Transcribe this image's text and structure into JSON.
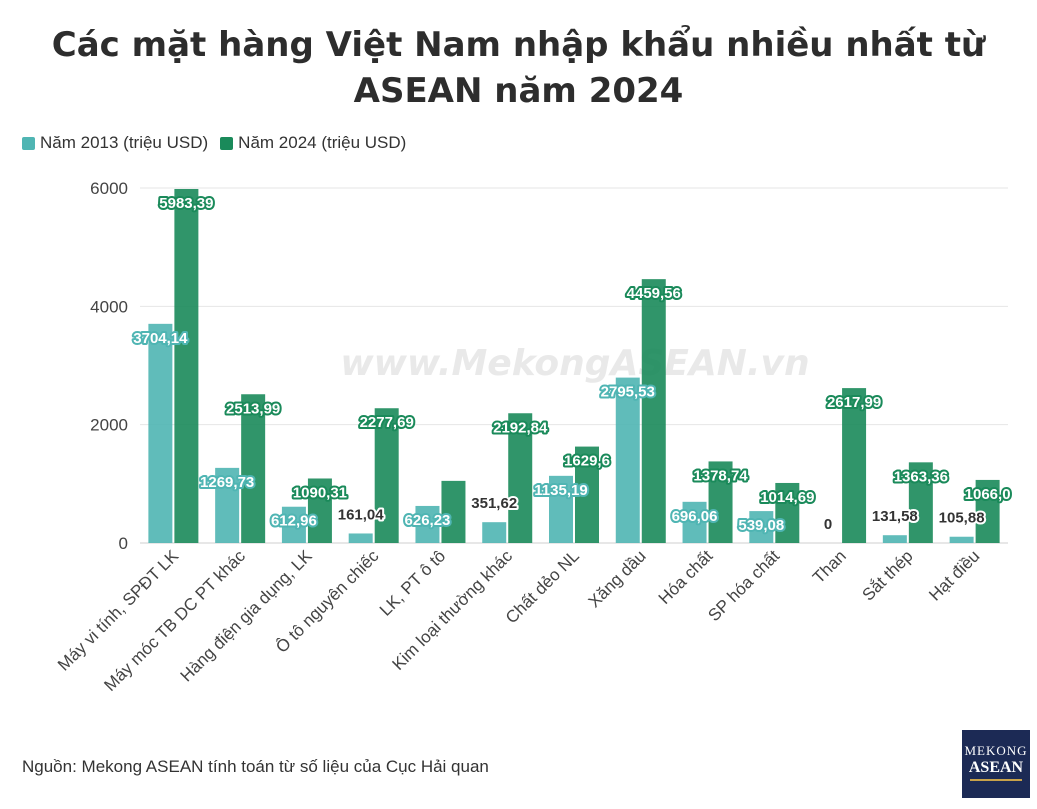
{
  "title_line1": "Các mặt hàng Việt Nam nhập khẩu nhiều nhất từ",
  "title_line2": "ASEAN năm 2024",
  "legend": [
    {
      "label": "Năm 2013 (triệu USD)",
      "color": "#4fb5b3"
    },
    {
      "label": "Năm 2024 (triệu USD)",
      "color": "#1a8a5a"
    }
  ],
  "watermark": "www.MekongASEAN.vn",
  "source": "Nguồn: Mekong ASEAN tính toán từ số liệu của Cục Hải quan",
  "logo": {
    "line1": "MEKONG",
    "line2": "ASEAN"
  },
  "chart_data": {
    "type": "bar",
    "categories": [
      "Máy vi tính, SPĐT LK",
      "Máy móc TB DC PT khác",
      "Hàng điện gia dụng, LK",
      "Ô tô nguyên chiếc",
      "LK, PT ô tô",
      "Kim loại thường khác",
      "Chất dẻo NL",
      "Xăng dầu",
      "Hóa chất",
      "SP hóa chất",
      "Than",
      "Sắt thép",
      "Hạt điều"
    ],
    "series": [
      {
        "name": "Năm 2013 (triệu USD)",
        "color": "#4fb5b3",
        "values": [
          3704.14,
          1269.73,
          612.96,
          161.04,
          626.23,
          351.62,
          1135.19,
          2795.53,
          696.06,
          539.08,
          0,
          131.58,
          105.88
        ],
        "labels": [
          "3704,14",
          "1269,73",
          "612,96",
          "161,04",
          "626,23",
          "351,62",
          "1135,19",
          "2795,53",
          "696,06",
          "539,08",
          "0",
          "131,58",
          "105,88"
        ]
      },
      {
        "name": "Năm 2024 (triệu USD)",
        "color": "#1a8a5a",
        "values": [
          5983.39,
          2513.99,
          1090.31,
          2277.69,
          1050,
          2192.84,
          1629.6,
          4459.56,
          1378.74,
          1014.69,
          2617.99,
          1363.36,
          1066.0
        ],
        "labels": [
          "5983,39",
          "2513,99",
          "1090,31",
          "2277,69",
          "",
          "2192,84",
          "1629,6",
          "4459,56",
          "1378,74",
          "1014,69",
          "2617,99",
          "1363,36",
          "1066,0"
        ]
      }
    ],
    "ylim": [
      0,
      6000
    ],
    "yticks": [
      0,
      2000,
      4000,
      6000
    ],
    "grid": true,
    "legend_position": "top-left"
  }
}
